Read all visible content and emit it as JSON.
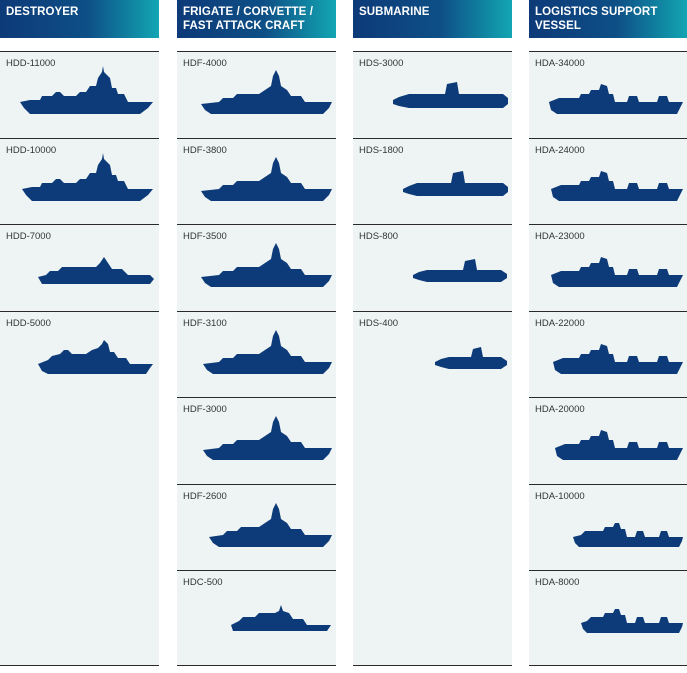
{
  "columns": [
    {
      "title": "DESTROYER",
      "items": [
        {
          "label": "HDD-11000",
          "type": "destroyer"
        },
        {
          "label": "HDD-10000",
          "type": "destroyer"
        },
        {
          "label": "HDD-7000",
          "type": "stealth-destroyer"
        },
        {
          "label": "HDD-5000",
          "type": "destroyer-small"
        }
      ]
    },
    {
      "title": "FRIGATE / CORVETTE / FAST ATTACK CRAFT",
      "items": [
        {
          "label": "HDF-4000",
          "type": "frigate"
        },
        {
          "label": "HDF-3800",
          "type": "frigate"
        },
        {
          "label": "HDF-3500",
          "type": "frigate"
        },
        {
          "label": "HDF-3100",
          "type": "frigate"
        },
        {
          "label": "HDF-3000",
          "type": "frigate"
        },
        {
          "label": "HDF-2600",
          "type": "frigate"
        },
        {
          "label": "HDC-500",
          "type": "patrol-craft"
        }
      ]
    },
    {
      "title": "SUBMARINE",
      "items": [
        {
          "label": "HDS-3000",
          "type": "submarine-large"
        },
        {
          "label": "HDS-1800",
          "type": "submarine-medium"
        },
        {
          "label": "HDS-800",
          "type": "submarine-small"
        },
        {
          "label": "HDS-400",
          "type": "submarine-mini"
        }
      ]
    },
    {
      "title": "LOGISTICS SUPPORT VESSEL",
      "items": [
        {
          "label": "HDA-34000",
          "type": "logistics"
        },
        {
          "label": "HDA-24000",
          "type": "logistics"
        },
        {
          "label": "HDA-23000",
          "type": "logistics"
        },
        {
          "label": "HDA-22000",
          "type": "logistics"
        },
        {
          "label": "HDA-20000",
          "type": "logistics"
        },
        {
          "label": "HDA-10000",
          "type": "logistics-small"
        },
        {
          "label": "HDA-8000",
          "type": "logistics-small"
        }
      ]
    }
  ],
  "colors": {
    "ship": "#0d3a78",
    "header_start": "#0d3a78",
    "header_end": "#12a6b3",
    "panel": "#eef4f4"
  }
}
